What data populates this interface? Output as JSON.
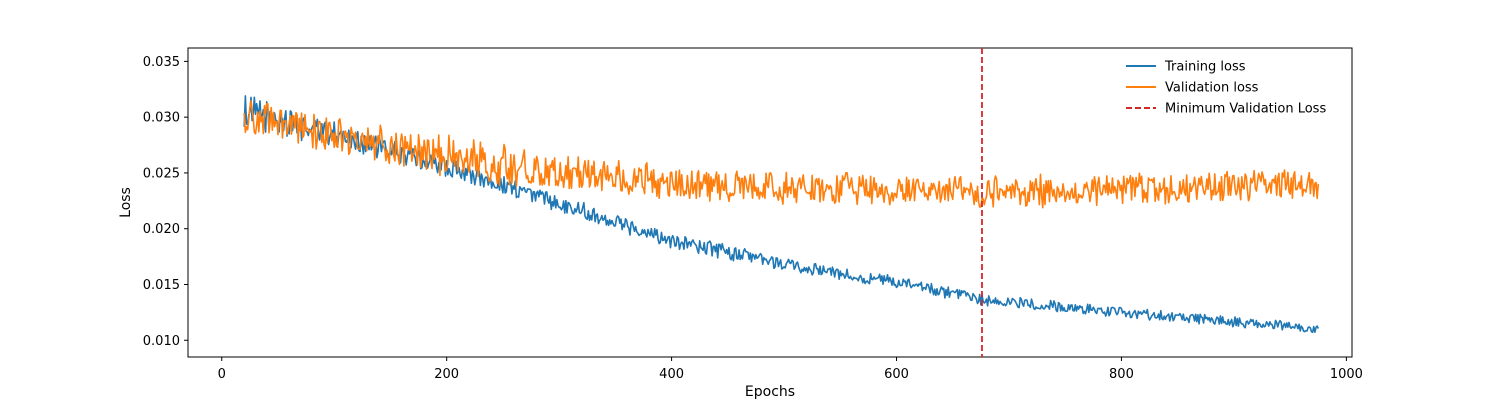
{
  "chart_data": {
    "type": "line",
    "title": "",
    "xlabel": "Epochs",
    "ylabel": "Loss",
    "xlim": [
      -30,
      1005
    ],
    "ylim": [
      0.0085,
      0.0362
    ],
    "xticks": [
      0,
      200,
      400,
      600,
      800,
      1000
    ],
    "yticks": [
      0.01,
      0.015,
      0.02,
      0.025,
      0.03,
      0.035
    ],
    "xtick_labels": [
      "0",
      "200",
      "400",
      "600",
      "800",
      "1000"
    ],
    "ytick_labels": [
      "0.010",
      "0.015",
      "0.020",
      "0.025",
      "0.030",
      "0.035"
    ],
    "grid": false,
    "legend_position": "top-right",
    "x_start": 20,
    "x_end": 975,
    "x_step": 1,
    "series": [
      {
        "name": "Training loss",
        "color": "#1f77b4",
        "trend": [
          [
            20,
            0.0305
          ],
          [
            100,
            0.0285
          ],
          [
            200,
            0.0255
          ],
          [
            300,
            0.0223
          ],
          [
            400,
            0.019
          ],
          [
            500,
            0.0168
          ],
          [
            600,
            0.0152
          ],
          [
            676,
            0.0136
          ],
          [
            800,
            0.0125
          ],
          [
            975,
            0.011
          ]
        ],
        "noise_amplitude": [
          [
            20,
            0.0018
          ],
          [
            100,
            0.0012
          ],
          [
            300,
            0.0009
          ],
          [
            600,
            0.0006
          ],
          [
            975,
            0.0005
          ]
        ]
      },
      {
        "name": "Validation loss",
        "color": "#ff7f0e",
        "trend": [
          [
            20,
            0.03
          ],
          [
            100,
            0.0285
          ],
          [
            200,
            0.0265
          ],
          [
            300,
            0.025
          ],
          [
            400,
            0.024
          ],
          [
            500,
            0.0236
          ],
          [
            600,
            0.0235
          ],
          [
            676,
            0.0233
          ],
          [
            800,
            0.0236
          ],
          [
            975,
            0.024
          ]
        ],
        "noise_amplitude": [
          [
            20,
            0.0018
          ],
          [
            200,
            0.002
          ],
          [
            500,
            0.0017
          ],
          [
            975,
            0.0015
          ]
        ]
      }
    ],
    "vline": {
      "name": "Minimum Validation Loss",
      "x": 676,
      "color": "#d62728",
      "style": "dashed"
    }
  }
}
